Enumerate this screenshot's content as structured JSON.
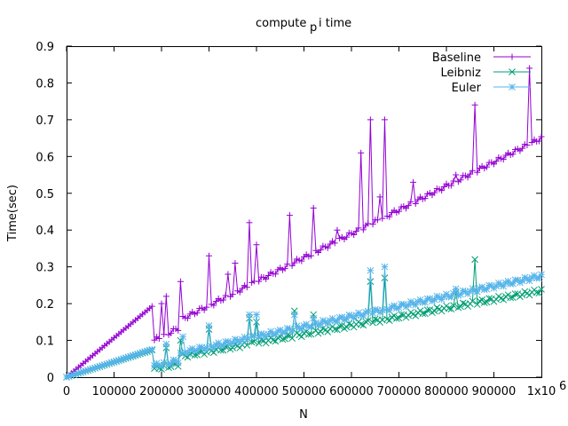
{
  "chart_data": {
    "type": "line",
    "title_main": "compute ",
    "title_sub": "p",
    "title_tail": "i time",
    "xlabel": "N",
    "ylabel": "Time(sec)",
    "xlim": [
      0,
      1000000
    ],
    "ylim": [
      0,
      0.9
    ],
    "grid": false,
    "legend_position": "top-right",
    "x_ticks": [
      0,
      100000,
      200000,
      300000,
      400000,
      500000,
      600000,
      700000,
      800000,
      900000
    ],
    "x_tick_labels": [
      "0",
      "100000",
      "200000",
      "300000",
      "400000",
      "500000",
      "600000",
      "700000",
      "800000",
      "900000"
    ],
    "x_last_tick_label": "1x10",
    "x_last_tick_exponent": "6",
    "y_ticks": [
      0,
      0.1,
      0.2,
      0.3,
      0.4,
      0.5,
      0.6,
      0.7,
      0.8,
      0.9
    ],
    "y_tick_labels": [
      "0",
      "0.1",
      "0.2",
      "0.3",
      "0.4",
      "0.5",
      "0.6",
      "0.7",
      "0.8",
      "0.9"
    ],
    "series": [
      {
        "name": "Baseline",
        "color": "#9400d3",
        "marker": "plus",
        "base_slope": 0.65,
        "break_x": 180000,
        "pre_break_slope": 1.07,
        "spikes": [
          [
            200000,
            0.2
          ],
          [
            210000,
            0.22
          ],
          [
            240000,
            0.26
          ],
          [
            300000,
            0.33
          ],
          [
            340000,
            0.28
          ],
          [
            355000,
            0.31
          ],
          [
            385000,
            0.42
          ],
          [
            400000,
            0.36
          ],
          [
            470000,
            0.44
          ],
          [
            520000,
            0.46
          ],
          [
            570000,
            0.4
          ],
          [
            620000,
            0.61
          ],
          [
            640000,
            0.7
          ],
          [
            660000,
            0.49
          ],
          [
            670000,
            0.7
          ],
          [
            730000,
            0.53
          ],
          [
            820000,
            0.55
          ],
          [
            860000,
            0.74
          ],
          [
            975000,
            0.84
          ]
        ]
      },
      {
        "name": "Leibniz",
        "color": "#009e73",
        "marker": "cross",
        "base_slope": 0.235,
        "break_x": 180000,
        "pre_break_slope": 0.41,
        "spikes": [
          [
            210000,
            0.08
          ],
          [
            240000,
            0.1
          ],
          [
            300000,
            0.13
          ],
          [
            385000,
            0.16
          ],
          [
            400000,
            0.15
          ],
          [
            480000,
            0.18
          ],
          [
            520000,
            0.17
          ],
          [
            640000,
            0.26
          ],
          [
            670000,
            0.27
          ],
          [
            820000,
            0.23
          ],
          [
            860000,
            0.32
          ]
        ]
      },
      {
        "name": "Euler",
        "color": "#56b4e9",
        "marker": "star",
        "base_slope": 0.275,
        "break_x": 180000,
        "pre_break_slope": 0.42,
        "spikes": [
          [
            210000,
            0.09
          ],
          [
            245000,
            0.11
          ],
          [
            300000,
            0.14
          ],
          [
            385000,
            0.17
          ],
          [
            400000,
            0.17
          ],
          [
            480000,
            0.17
          ],
          [
            520000,
            0.16
          ],
          [
            640000,
            0.29
          ],
          [
            670000,
            0.3
          ],
          [
            820000,
            0.24
          ]
        ]
      }
    ]
  }
}
